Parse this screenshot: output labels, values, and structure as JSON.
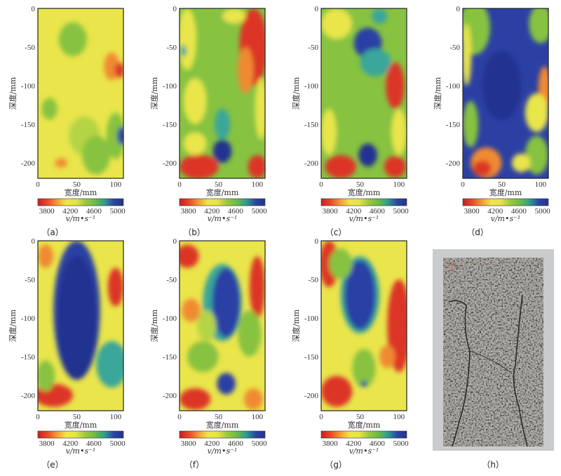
{
  "chart_data": {
    "type": "heatmap",
    "panels": [
      {
        "label": "(a)",
        "caption": "（a）"
      },
      {
        "label": "(b)",
        "caption": "（b）"
      },
      {
        "label": "(c)",
        "caption": "（c）"
      },
      {
        "label": "(d)",
        "caption": "（d）"
      },
      {
        "label": "(e)",
        "caption": "（e）"
      },
      {
        "label": "(f)",
        "caption": "（f）"
      },
      {
        "label": "(g)",
        "caption": "（g）"
      }
    ],
    "photo": {
      "label": "(h)",
      "caption": "（h）"
    },
    "xlabel": "宽度/mm",
    "ylabel": "深度/mm",
    "xlim": [
      0,
      110
    ],
    "ylim": [
      -220,
      0
    ],
    "xticks": [
      "0",
      "50",
      "100"
    ],
    "yticks": [
      "0",
      "-50",
      "-100",
      "-150",
      "-200"
    ],
    "colorbar": {
      "label": "v/m•s⁻¹",
      "range": [
        3650,
        5100
      ],
      "ticks": [
        "3800",
        "4200",
        "4600",
        "5000"
      ],
      "colors": [
        "#c81e1e",
        "#e8492a",
        "#f39a34",
        "#ece64a",
        "#e6e34a",
        "#9cc83f",
        "#6cbb45",
        "#2f9e8f",
        "#2a45a6",
        "#27318a"
      ]
    },
    "colors": {
      "red": "#dc3526",
      "orange": "#f08a32",
      "yellow": "#e9e54b",
      "lightgreen": "#b4d444",
      "green": "#87c241",
      "teal": "#3aa69a",
      "blue": "#2c40a4",
      "darkblue": "#233290"
    }
  }
}
